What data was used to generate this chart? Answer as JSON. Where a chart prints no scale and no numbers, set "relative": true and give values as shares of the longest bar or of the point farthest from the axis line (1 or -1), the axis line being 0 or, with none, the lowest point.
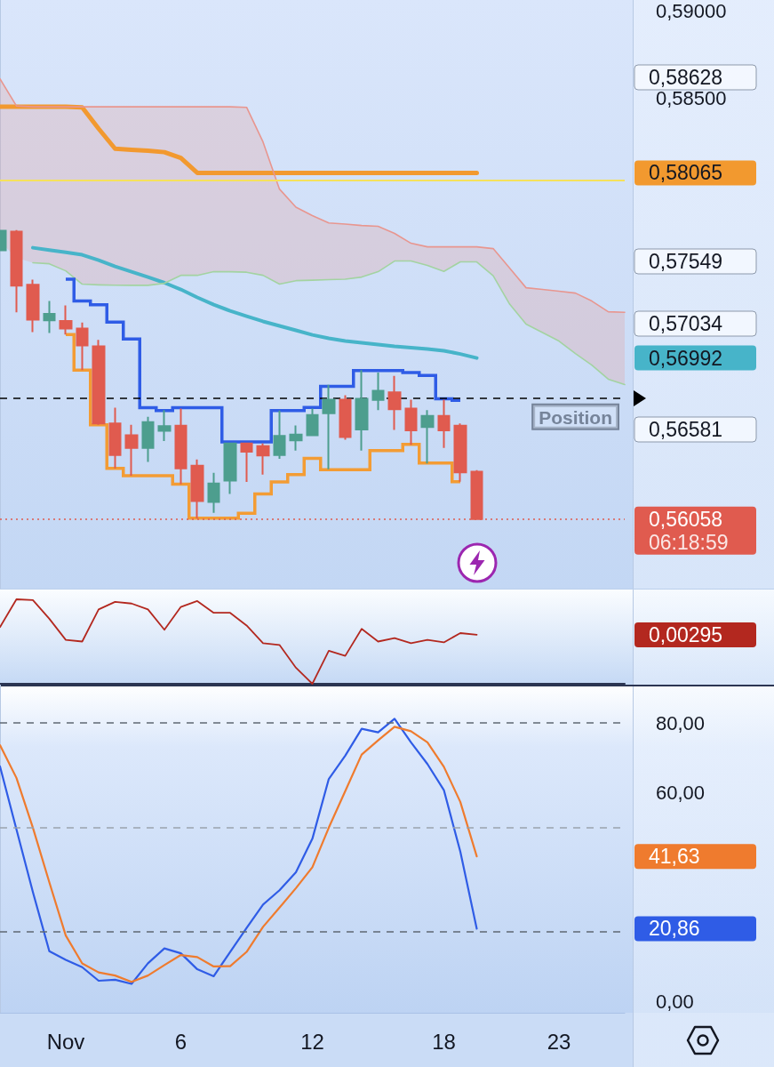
{
  "chart_data": [
    {
      "type": "candlestick",
      "categories": [
        null,
        null,
        null,
        null,
        null,
        null,
        null,
        null,
        null,
        null,
        null,
        null,
        null,
        null,
        null,
        null,
        null,
        null,
        null,
        null,
        null,
        null,
        null,
        null,
        null,
        null,
        null,
        null,
        null,
        null,
        null,
        null,
        null,
        null,
        null,
        null,
        null,
        null,
        null
      ],
      "ohlc": [
        [
          0.57616,
          0.57734,
          0.57611,
          0.57729
        ],
        [
          0.57725,
          0.57734,
          0.57257,
          0.57411
        ],
        [
          0.57416,
          0.57446,
          0.57142,
          0.57214
        ],
        [
          0.5721,
          0.57322,
          0.57137,
          0.57248
        ],
        [
          0.57207,
          0.57296,
          0.57128,
          0.57162
        ],
        [
          0.57162,
          0.57197,
          0.56922,
          0.57064
        ],
        [
          0.57059,
          0.57097,
          0.56604,
          0.56613
        ],
        [
          0.56613,
          0.56704,
          0.56352,
          0.56429
        ],
        [
          0.56544,
          0.56604,
          0.56309,
          0.5647
        ],
        [
          0.5647,
          0.56651,
          0.5639,
          0.5662
        ],
        [
          0.5657,
          0.5669,
          0.5651,
          0.56597
        ],
        [
          0.56599,
          0.56699,
          0.56261,
          0.56352
        ],
        [
          0.56367,
          0.56403,
          0.56062,
          0.56163
        ],
        [
          0.56158,
          0.56326,
          0.56094,
          0.56264
        ],
        [
          0.56281,
          0.56501,
          0.56204,
          0.56496
        ],
        [
          0.56496,
          0.56496,
          0.56273,
          0.56449
        ],
        [
          0.56481,
          0.56496,
          0.56316,
          0.56427
        ],
        [
          0.56429,
          0.56687,
          0.56407,
          0.5654
        ],
        [
          0.56515,
          0.56601,
          0.56455,
          0.56548
        ],
        [
          0.56544,
          0.56699,
          0.56539,
          0.56661
        ],
        [
          0.56671,
          0.56836,
          0.56347,
          0.5675
        ],
        [
          0.5675,
          0.56776,
          0.56518,
          0.56534
        ],
        [
          0.56577,
          0.56922,
          0.56455,
          0.56755
        ],
        [
          0.56749,
          0.56908,
          0.5669,
          0.56802
        ],
        [
          0.56793,
          0.56888,
          0.56575,
          0.56695
        ],
        [
          0.56699,
          0.5675,
          0.56489,
          0.56573
        ],
        [
          0.56592,
          0.5669,
          0.56381,
          0.56656
        ],
        [
          0.56656,
          0.5675,
          0.5647,
          0.56573
        ],
        [
          0.56599,
          0.56613,
          0.56275,
          0.56329
        ],
        [
          0.56333,
          0.56342,
          0.56058,
          0.56058
        ],
        null,
        null,
        null,
        null,
        null,
        null,
        null,
        null,
        null
      ],
      "colors": [
        "#4d9e8e",
        "#e05b4f",
        "#e05b4f",
        "#4d9e8e",
        "#e05b4f",
        "#e05b4f",
        "#e05b4f",
        "#e05b4f",
        "#e05b4f",
        "#4d9e8e",
        "#4d9e8e",
        "#e05b4f",
        "#e05b4f",
        "#4d9e8e",
        "#4d9e8e",
        "#e05b4f",
        "#e05b4f",
        "#4d9e8e",
        "#4d9e8e",
        "#4d9e8e",
        "#4d9e8e",
        "#e05b4f",
        "#4d9e8e",
        "#4d9e8e",
        "#e05b4f",
        "#e05b4f",
        "#4d9e8e",
        "#e05b4f",
        "#e05b4f",
        "#e05b4f",
        null,
        null,
        null,
        null,
        null,
        null,
        null,
        null,
        null
      ],
      "series": [
        {
          "type": "line",
          "color": "#f2992f",
          "values": [
            0.58448,
            0.58448,
            0.58448,
            0.58448,
            0.58448,
            0.58445,
            0.58321,
            0.58205,
            0.58198,
            0.58193,
            0.58185,
            0.58151,
            0.58065,
            0.58065,
            0.58065,
            0.58065,
            0.58065,
            0.58065,
            0.58065,
            0.58065,
            0.58065,
            0.58065,
            0.58065,
            0.58065,
            0.58065,
            0.58065,
            0.58065,
            0.58065,
            0.58065,
            0.58065,
            null,
            null,
            null,
            null,
            null,
            null,
            null,
            null,
            null
          ]
        },
        {
          "type": "line",
          "color": "#47b4c9",
          "values": [
            null,
            null,
            0.57631,
            0.57617,
            0.57605,
            0.5759,
            0.57559,
            0.57523,
            0.57492,
            0.57461,
            0.57428,
            0.57389,
            0.57343,
            0.57301,
            0.57265,
            0.57234,
            0.57204,
            0.57178,
            0.57152,
            0.57126,
            0.57106,
            0.5709,
            0.5708,
            0.5707,
            0.57059,
            0.57052,
            0.57044,
            0.57034,
            0.57015,
            0.56992,
            null,
            null,
            null,
            null,
            null,
            null,
            null,
            null,
            null
          ]
        },
        {
          "type": "line",
          "color": "#e8968f",
          "values": [
            0.5861,
            0.58453,
            0.58448,
            0.58448,
            0.58448,
            0.58448,
            0.58448,
            0.58448,
            0.58448,
            0.58448,
            0.58448,
            0.58448,
            0.58448,
            0.58448,
            0.58448,
            0.58445,
            0.58244,
            0.57971,
            0.57866,
            0.57817,
            0.57775,
            0.57768,
            0.5776,
            0.57755,
            0.57714,
            0.57657,
            0.57636,
            0.57636,
            0.57636,
            0.57636,
            0.57626,
            0.57513,
            0.57399,
            0.57389,
            0.57379,
            0.57368,
            0.57322,
            0.5726,
            0.57257
          ],
          "upper": [
            0.5861,
            0.58453,
            0.58448,
            0.58448,
            0.58448,
            0.58448,
            0.58448,
            0.58448,
            0.58448,
            0.58448,
            0.58448,
            0.58448,
            0.58448,
            0.58448,
            0.58448,
            0.58445,
            0.58244,
            0.57971,
            0.57866,
            0.57817,
            0.57775,
            0.57768,
            0.5776,
            0.57755,
            0.57714,
            0.57657,
            0.57636,
            0.57636,
            0.57636,
            0.57636,
            0.57626,
            0.57513,
            0.57399,
            0.57389,
            0.57379,
            0.57368,
            0.57322,
            0.5726,
            0.57257
          ],
          "lower": [
            0.57667,
            0.57574,
            0.57544,
            0.57538,
            0.57497,
            0.5742,
            0.57416,
            0.57414,
            0.57413,
            0.57413,
            0.57425,
            0.57471,
            0.57471,
            0.57492,
            0.57492,
            0.57489,
            0.57471,
            0.5742,
            0.5744,
            0.57443,
            0.57446,
            0.57449,
            0.57461,
            0.57492,
            0.57554,
            0.57554,
            0.57528,
            0.57494,
            0.57549,
            0.57549,
            0.57469,
            0.57304,
            0.57188,
            0.57139,
            0.5709,
            0.57018,
            0.56951,
            0.56869,
            0.56838
          ]
        },
        {
          "type": "line",
          "color": "#a3d3a1",
          "values": [
            null,
            null,
            0.57544,
            0.57538,
            0.57497,
            0.5742,
            0.57416,
            0.57414,
            0.57413,
            0.57413,
            0.57425,
            0.57471,
            0.57471,
            0.57492,
            0.57492,
            0.57489,
            0.57471,
            0.5742,
            0.5744,
            0.57443,
            0.57446,
            0.57449,
            0.57461,
            0.57492,
            0.57554,
            0.57554,
            0.57528,
            0.57494,
            0.57549,
            0.57549,
            0.57469,
            0.57304,
            0.57188,
            0.57139,
            0.5709,
            0.57018,
            0.56951,
            0.56869,
            0.56838
          ]
        },
        {
          "type": "step",
          "color": "#2f5ce6",
          "values": [
            null,
            null,
            null,
            null,
            0.57449,
            0.57322,
            0.573,
            0.572,
            0.57102,
            0.56704,
            0.56687,
            0.56704,
            0.56704,
            0.56704,
            0.56505,
            0.56505,
            0.56505,
            0.56687,
            0.56687,
            0.56705,
            0.56827,
            0.56827,
            0.56919,
            0.56919,
            0.56919,
            0.56908,
            0.56891,
            0.56755,
            0.56747,
            null,
            null,
            null,
            null,
            null,
            null,
            null,
            null,
            null,
            null
          ]
        },
        {
          "type": "step",
          "color": "#f39c34",
          "values": [
            null,
            null,
            null,
            null,
            0.57128,
            0.56922,
            0.56604,
            0.56352,
            0.56309,
            0.56309,
            0.56309,
            0.56261,
            0.56063,
            0.56063,
            0.56063,
            0.56092,
            0.56204,
            0.56273,
            0.56316,
            0.5641,
            0.56345,
            0.56345,
            0.56345,
            0.56455,
            0.56455,
            0.56491,
            0.56383,
            0.56383,
            0.56275,
            null,
            null,
            null,
            null,
            null,
            null,
            null,
            null,
            null,
            null
          ]
        }
      ],
      "ref_lines": [
        {
          "axis": "y",
          "value": 0.5802,
          "color": "#f5e15c",
          "line_style": "solid"
        },
        {
          "axis": "y",
          "value": 0.56759,
          "label": "Position",
          "color": "#000000",
          "line_style": "dashed"
        },
        {
          "axis": "y",
          "value": 0.56058,
          "color": "#e05b4f",
          "line_style": "dotted"
        }
      ],
      "annotations": [
        "0,58628",
        "0,58065",
        "0,57549",
        "0,57034",
        "0,56992",
        "0,56581",
        "0,56058",
        "06:18:59"
      ],
      "ylim": [
        0.55655,
        0.59067
      ],
      "yticks": [
        {
          "value": 0.59,
          "label": "0,59000"
        },
        {
          "value": 0.585,
          "label": "0,58500"
        }
      ],
      "tick_labels": "y"
    },
    {
      "type": "line",
      "relative": true,
      "categories": [
        null,
        null,
        null,
        null,
        null,
        null,
        null,
        null,
        null,
        null,
        null,
        null,
        null,
        null,
        null,
        null,
        null,
        null,
        null,
        null,
        null,
        null,
        null,
        null,
        null,
        null,
        null,
        null,
        null,
        null,
        null,
        null,
        null,
        null,
        null,
        null,
        null,
        null,
        null
      ],
      "series": [
        {
          "color": "#b3281f",
          "values": [
            0.67,
            1.0,
            0.99,
            0.77,
            0.52,
            0.5,
            0.88,
            0.97,
            0.95,
            0.88,
            0.64,
            0.91,
            0.98,
            0.84,
            0.84,
            0.69,
            0.48,
            0.46,
            0.19,
            0.0,
            0.39,
            0.33,
            0.65,
            0.5,
            0.54,
            0.48,
            0.52,
            0.49,
            0.6,
            0.58,
            null,
            null,
            null,
            null,
            null,
            null,
            null,
            null,
            null
          ]
        }
      ],
      "annotations": [
        "0,00295"
      ],
      "tick_labels": false
    },
    {
      "type": "line",
      "categories": [
        null,
        null,
        null,
        null,
        "Nov",
        null,
        null,
        null,
        null,
        null,
        null,
        "6",
        null,
        null,
        null,
        null,
        null,
        null,
        null,
        "12",
        null,
        null,
        null,
        null,
        null,
        null,
        null,
        "18",
        null,
        null,
        null,
        null,
        null,
        null,
        "23",
        null,
        null,
        null,
        null
      ],
      "series": [
        {
          "color": "#2f5ce6",
          "values": [
            67.5,
            49.4,
            31.4,
            14.4,
            11.9,
            9.8,
            5.9,
            6.2,
            5.0,
            10.9,
            15.2,
            13.8,
            9.2,
            7.2,
            14.2,
            21.1,
            27.8,
            31.9,
            37.1,
            46.7,
            63.9,
            70.6,
            78.3,
            77.3,
            81.2,
            74.4,
            68.2,
            60.7,
            43.0,
            20.86,
            null,
            null,
            null,
            null,
            null,
            null,
            null,
            null,
            null
          ]
        },
        {
          "color": "#ef7b2e",
          "values": [
            73.6,
            64.2,
            49.9,
            34.2,
            18.9,
            10.9,
            8.3,
            7.4,
            5.6,
            7.4,
            10.4,
            13.3,
            12.7,
            10.0,
            10.1,
            14.2,
            21.4,
            26.9,
            32.5,
            38.5,
            49.9,
            60.4,
            70.9,
            75.0,
            78.9,
            77.6,
            74.4,
            67.4,
            57.3,
            41.63,
            null,
            null,
            null,
            null,
            null,
            null,
            null,
            null,
            null
          ]
        }
      ],
      "annotations": [
        "41,63",
        "20,86"
      ],
      "ref_lines": [
        {
          "axis": "y",
          "value": 80,
          "color": "#5f6873",
          "line_style": "dashed"
        },
        {
          "axis": "y",
          "value": 50,
          "color": "#9aa3ad",
          "line_style": "dashed"
        },
        {
          "axis": "y",
          "value": 20,
          "color": "#5f6873",
          "line_style": "dashed"
        }
      ],
      "ylim": [
        -3.3,
        91
      ],
      "yticks": [
        {
          "value": 0,
          "label": "0,00"
        },
        {
          "value": 60,
          "label": "60,00"
        },
        {
          "value": 80,
          "label": "80,00"
        }
      ]
    }
  ]
}
